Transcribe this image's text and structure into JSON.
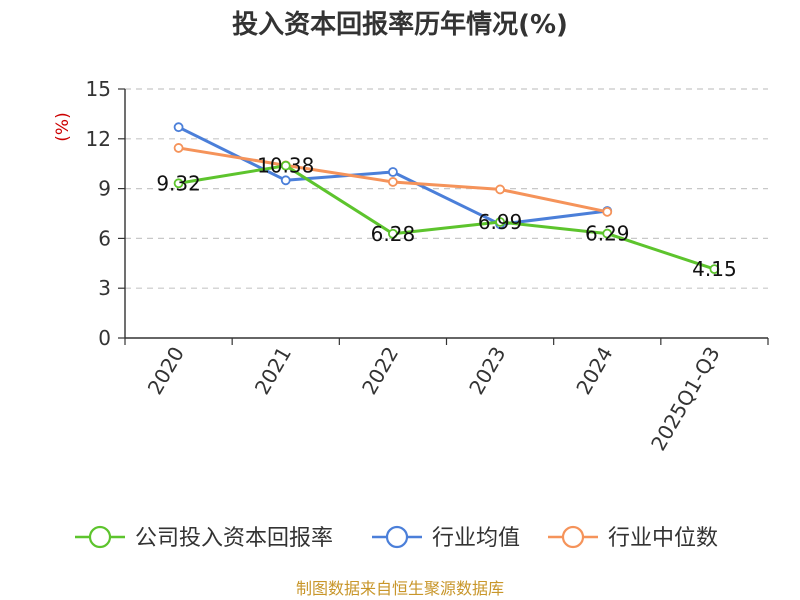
{
  "chart_data": {
    "type": "line",
    "title": "投入资本回报率历年情况(%)",
    "unit_label": "(%)",
    "categories": [
      "2020",
      "2021",
      "2022",
      "2023",
      "2024",
      "2025Q1-Q3"
    ],
    "ylim": [
      0,
      15
    ],
    "yticks": [
      "0",
      "3",
      "6",
      "9",
      "12",
      "15"
    ],
    "grid": true,
    "legend_position": "bottom",
    "series": [
      {
        "name": "公司投入资本回报率",
        "color": "#5dc42d",
        "values": [
          9.32,
          10.38,
          6.28,
          6.99,
          6.29,
          4.15
        ],
        "labels": [
          "9.32",
          "10.38",
          "6.28",
          "6.99",
          "6.29",
          "4.15"
        ]
      },
      {
        "name": "行业均值",
        "color": "#4b7fd9",
        "values": [
          12.7,
          9.5,
          10.0,
          6.85,
          7.65,
          null
        ]
      },
      {
        "name": "行业中位数",
        "color": "#f5935a",
        "values": [
          11.45,
          10.4,
          9.4,
          8.95,
          7.6,
          null
        ]
      }
    ],
    "source": "制图数据来自恒生聚源数据库"
  }
}
